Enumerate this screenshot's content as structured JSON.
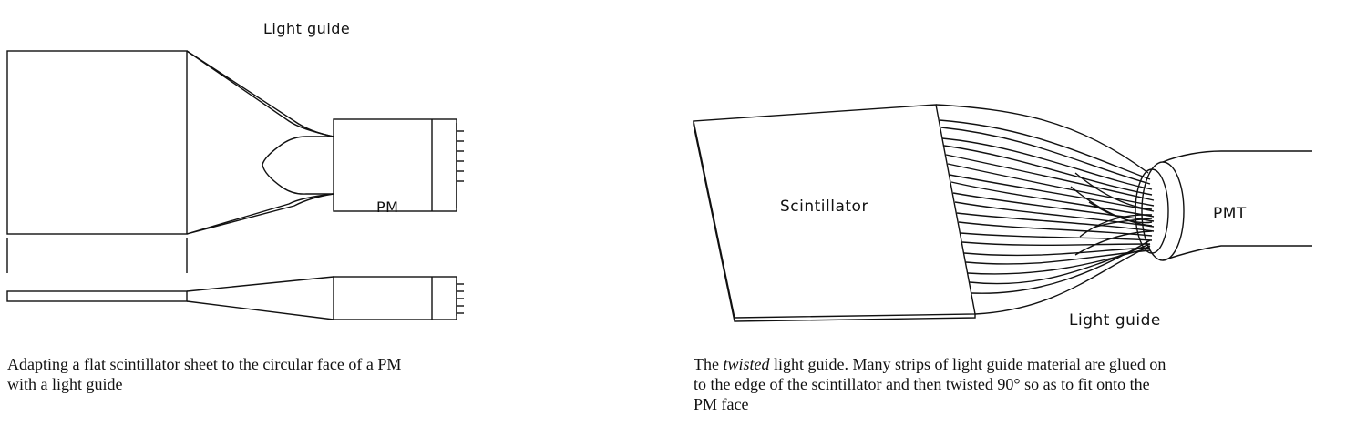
{
  "left_figure": {
    "label_light_guide": "Light guide",
    "label_pm": "PM",
    "caption_line1": "Adapting a flat scintillator sheet to the circular face of a PM",
    "caption_line2": "with a light guide"
  },
  "right_figure": {
    "label_scintillator": "Scintillator",
    "label_pmt": "PMT",
    "label_light_guide": "Light guide",
    "caption_line1_pre": "The ",
    "caption_line1_italic": "twisted",
    "caption_line1_post": " light guide. Many strips of light guide material are glued on",
    "caption_line2": "to the edge of the scintillator and then twisted 90° so as to fit onto the",
    "caption_line3": "PM face"
  }
}
